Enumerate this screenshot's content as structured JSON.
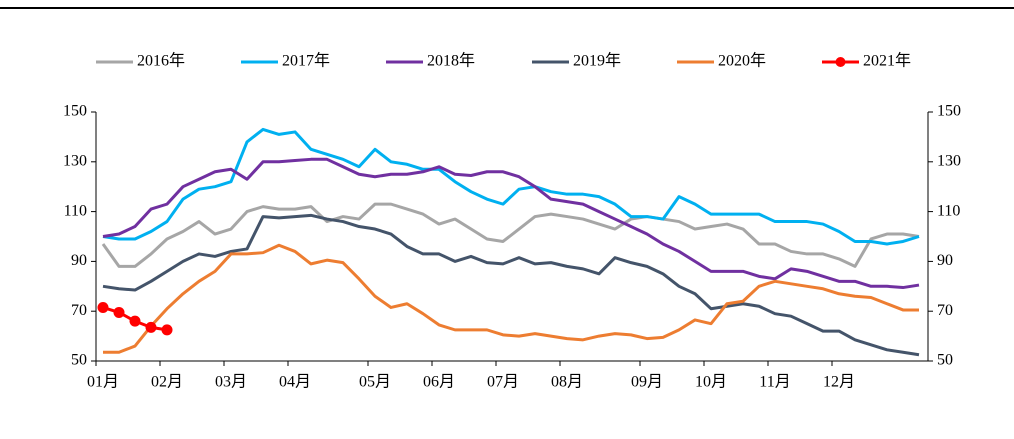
{
  "chart_data": {
    "type": "line",
    "categories": [
      "01月",
      null,
      null,
      null,
      "02月",
      null,
      null,
      null,
      "03月",
      null,
      null,
      null,
      "04月",
      null,
      null,
      null,
      null,
      "05月",
      null,
      null,
      null,
      "06月",
      null,
      null,
      null,
      "07月",
      null,
      null,
      null,
      "08月",
      null,
      null,
      null,
      null,
      "09月",
      null,
      null,
      null,
      "10月",
      null,
      null,
      null,
      "11月",
      null,
      null,
      null,
      "12月",
      null,
      null,
      null,
      null,
      null
    ],
    "series": [
      {
        "name": "2016年",
        "color": "#a6a6a6",
        "values": [
          97,
          88,
          88,
          93,
          99,
          102,
          106,
          101,
          103,
          110,
          112,
          111,
          111,
          112,
          106,
          108,
          107,
          113,
          113,
          111,
          109,
          105,
          107,
          103,
          99,
          98,
          103,
          108,
          109,
          108,
          107,
          105,
          103,
          107,
          108,
          107,
          106,
          103,
          104,
          105,
          103,
          97,
          97,
          94,
          93,
          93,
          91,
          88,
          99,
          101,
          101,
          100
        ]
      },
      {
        "name": "2017年",
        "color": "#00b0f0",
        "values": [
          100,
          99,
          99,
          102,
          106,
          115,
          119,
          120,
          122,
          138,
          143,
          141,
          142,
          135,
          133,
          131,
          128,
          135,
          130,
          129,
          127,
          127,
          122,
          118,
          115,
          113,
          119,
          120,
          118,
          117,
          117,
          116,
          113,
          108,
          108,
          107,
          116,
          113,
          109,
          109,
          109,
          109,
          106,
          106,
          106,
          105,
          102,
          98,
          98,
          97,
          98,
          100
        ]
      },
      {
        "name": "2018年",
        "color": "#7030a0",
        "values": [
          100,
          101,
          104,
          111,
          113,
          120,
          123,
          126,
          127,
          123,
          130,
          130,
          130.5,
          131,
          131,
          128,
          125,
          124,
          125,
          125,
          126,
          128,
          125,
          124.5,
          126,
          126,
          124,
          120,
          115,
          114,
          113,
          110,
          107,
          104,
          101,
          97,
          94,
          90,
          86,
          86,
          86,
          84,
          83,
          87,
          86,
          84,
          82,
          82,
          80,
          80,
          79.5,
          80.5
        ]
      },
      {
        "name": "2019年",
        "color": "#44546a",
        "values": [
          80,
          79,
          78.5,
          82,
          86,
          90,
          93,
          92,
          94,
          95,
          108,
          107.5,
          108,
          108.5,
          107,
          106,
          104,
          103,
          101,
          96,
          93,
          93,
          90,
          92,
          89.5,
          89,
          91.5,
          89,
          89.5,
          88,
          87,
          85,
          91.5,
          89.5,
          88,
          85,
          80,
          77,
          71,
          72,
          73,
          72,
          69,
          68,
          65,
          62,
          62,
          58.5,
          56.5,
          54.5,
          53.5,
          52.5
        ]
      },
      {
        "name": "2020年",
        "color": "#ed7d31",
        "values": [
          53.5,
          53.5,
          56,
          64,
          71,
          77,
          82,
          86,
          93,
          93,
          93.5,
          96.5,
          94,
          89,
          90.5,
          89.5,
          83,
          76,
          71.5,
          73,
          69,
          64.5,
          62.5,
          62.5,
          62.5,
          60.5,
          60,
          61,
          60,
          59,
          58.5,
          60,
          61,
          60.5,
          59,
          59.5,
          62.5,
          66.5,
          65,
          73,
          74,
          80,
          82,
          81,
          80,
          79,
          77,
          76,
          75.5,
          73,
          70.5,
          70.5
        ]
      },
      {
        "name": "2021年",
        "color": "#ff0000",
        "markers": true,
        "values": [
          71.5,
          69.5,
          66,
          63.5,
          62.5,
          null,
          null,
          null,
          null,
          null,
          null,
          null,
          null,
          null,
          null,
          null,
          null,
          null,
          null,
          null,
          null,
          null,
          null,
          null,
          null,
          null,
          null,
          null,
          null,
          null,
          null,
          null,
          null,
          null,
          null,
          null,
          null,
          null,
          null,
          null,
          null,
          null,
          null,
          null,
          null,
          null,
          null,
          null,
          null,
          null,
          null,
          null
        ]
      }
    ],
    "ylim": [
      50,
      150
    ],
    "yticks": [
      50,
      70,
      90,
      110,
      130,
      150
    ],
    "y2lim": [
      50,
      150
    ],
    "y2ticks": [
      50,
      70,
      90,
      110,
      130,
      150
    ],
    "legend": "top",
    "grid": false
  }
}
